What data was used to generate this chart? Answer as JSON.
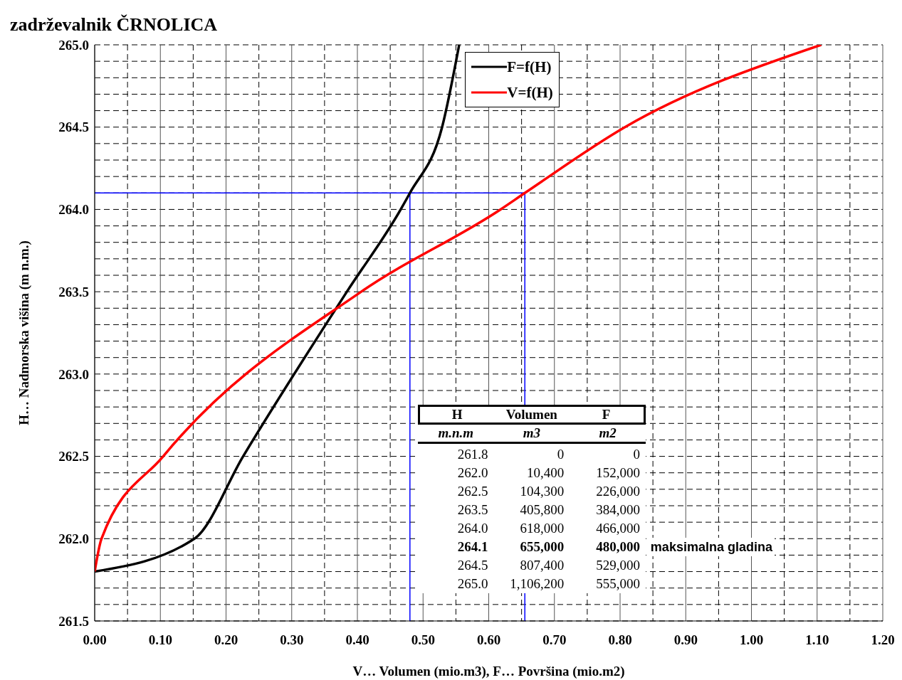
{
  "chart_data": {
    "type": "line",
    "title": "zadrževalnik ČRNOLICA",
    "xlabel": "V…   Volumen (mio.m3), F…   Površina (mio.m2)",
    "ylabel": "H…  Nadmorska višina (m n.m.)",
    "series": [
      {
        "name": "F=f(H)",
        "color": "#000000",
        "x": [
          0,
          0.152,
          0.226,
          0.384,
          0.466,
          0.48,
          0.529,
          0.555
        ],
        "values": [
          261.8,
          262.0,
          262.5,
          263.5,
          264.0,
          264.1,
          264.5,
          265.0
        ]
      },
      {
        "name": "V=f(H)",
        "color": "#ff0000",
        "x": [
          0,
          0.0104,
          0.1043,
          0.4058,
          0.618,
          0.655,
          0.8074,
          1.1062
        ],
        "values": [
          261.8,
          262.0,
          262.5,
          263.5,
          264.0,
          264.1,
          264.5,
          265.0
        ]
      }
    ],
    "xlim": [
      0,
      1.2
    ],
    "xticks": [
      {
        "value": 0,
        "label": "0.00"
      },
      {
        "value": 0.05,
        "label": null
      },
      {
        "value": 0.1,
        "label": "0.10"
      },
      {
        "value": 0.15,
        "label": null
      },
      {
        "value": 0.2,
        "label": "0.20"
      },
      {
        "value": 0.25,
        "label": null
      },
      {
        "value": 0.3,
        "label": "0.30"
      },
      {
        "value": 0.35,
        "label": null
      },
      {
        "value": 0.4,
        "label": "0.40"
      },
      {
        "value": 0.45,
        "label": null
      },
      {
        "value": 0.5,
        "label": "0.50"
      },
      {
        "value": 0.55,
        "label": null
      },
      {
        "value": 0.6,
        "label": "0.60"
      },
      {
        "value": 0.65,
        "label": null
      },
      {
        "value": 0.7,
        "label": "0.70"
      },
      {
        "value": 0.75,
        "label": null
      },
      {
        "value": 0.8,
        "label": "0.80"
      },
      {
        "value": 0.85,
        "label": null
      },
      {
        "value": 0.9,
        "label": "0.90"
      },
      {
        "value": 0.95,
        "label": null
      },
      {
        "value": 1.0,
        "label": "1.00"
      },
      {
        "value": 1.05,
        "label": null
      },
      {
        "value": 1.1,
        "label": "1.10"
      },
      {
        "value": 1.15,
        "label": null
      },
      {
        "value": 1.2,
        "label": "1.20"
      }
    ],
    "ylim": [
      261.5,
      265
    ],
    "yticks": [
      {
        "value": 261.5,
        "label": "261.5"
      },
      {
        "value": 261.6,
        "label": null
      },
      {
        "value": 261.7,
        "label": null
      },
      {
        "value": 261.8,
        "label": null
      },
      {
        "value": 261.9,
        "label": null
      },
      {
        "value": 262,
        "label": "262.0"
      },
      {
        "value": 262.1,
        "label": null
      },
      {
        "value": 262.2,
        "label": null
      },
      {
        "value": 262.3,
        "label": null
      },
      {
        "value": 262.4,
        "label": null
      },
      {
        "value": 262.5,
        "label": "262.5"
      },
      {
        "value": 262.6,
        "label": null
      },
      {
        "value": 262.7,
        "label": null
      },
      {
        "value": 262.8,
        "label": null
      },
      {
        "value": 262.9,
        "label": null
      },
      {
        "value": 263,
        "label": "263.0"
      },
      {
        "value": 263.1,
        "label": null
      },
      {
        "value": 263.2,
        "label": null
      },
      {
        "value": 263.3,
        "label": null
      },
      {
        "value": 263.4,
        "label": null
      },
      {
        "value": 263.5,
        "label": "263.5"
      },
      {
        "value": 263.6,
        "label": null
      },
      {
        "value": 263.7,
        "label": null
      },
      {
        "value": 263.8,
        "label": null
      },
      {
        "value": 263.9,
        "label": null
      },
      {
        "value": 264,
        "label": "264.0"
      },
      {
        "value": 264.1,
        "label": null
      },
      {
        "value": 264.2,
        "label": null
      },
      {
        "value": 264.3,
        "label": null
      },
      {
        "value": 264.4,
        "label": null
      },
      {
        "value": 264.5,
        "label": "264.5"
      },
      {
        "value": 264.6,
        "label": null
      },
      {
        "value": 264.7,
        "label": null
      },
      {
        "value": 264.8,
        "label": null
      },
      {
        "value": 264.9,
        "label": null
      },
      {
        "value": 265,
        "label": "265.0"
      }
    ],
    "ref_lines": [
      {
        "axis": "y",
        "value": 264.1,
        "color": "#0000ff"
      },
      {
        "axis": "x",
        "value": 0.48,
        "color": "#0000ff"
      },
      {
        "axis": "x",
        "value": 0.655,
        "color": "#0000ff"
      }
    ],
    "annotations": [
      "H",
      "Volumen",
      "F",
      "m.n.m",
      "m3",
      "m2",
      "261.8",
      "0",
      "0",
      "262.0",
      "10,400",
      "152,000",
      "262.5",
      "104,300",
      "226,000",
      "263.5",
      "405,800",
      "384,000",
      "264.0",
      "618,000",
      "466,000",
      "264.1",
      "655,000",
      "480,000",
      "264.5",
      "807,400",
      "529,000",
      "265.0",
      "1,106,200",
      "555,000",
      "maksimalna gladina"
    ],
    "grid": true,
    "legend": "top right",
    "marker": "none",
    "line_style": "solid"
  }
}
